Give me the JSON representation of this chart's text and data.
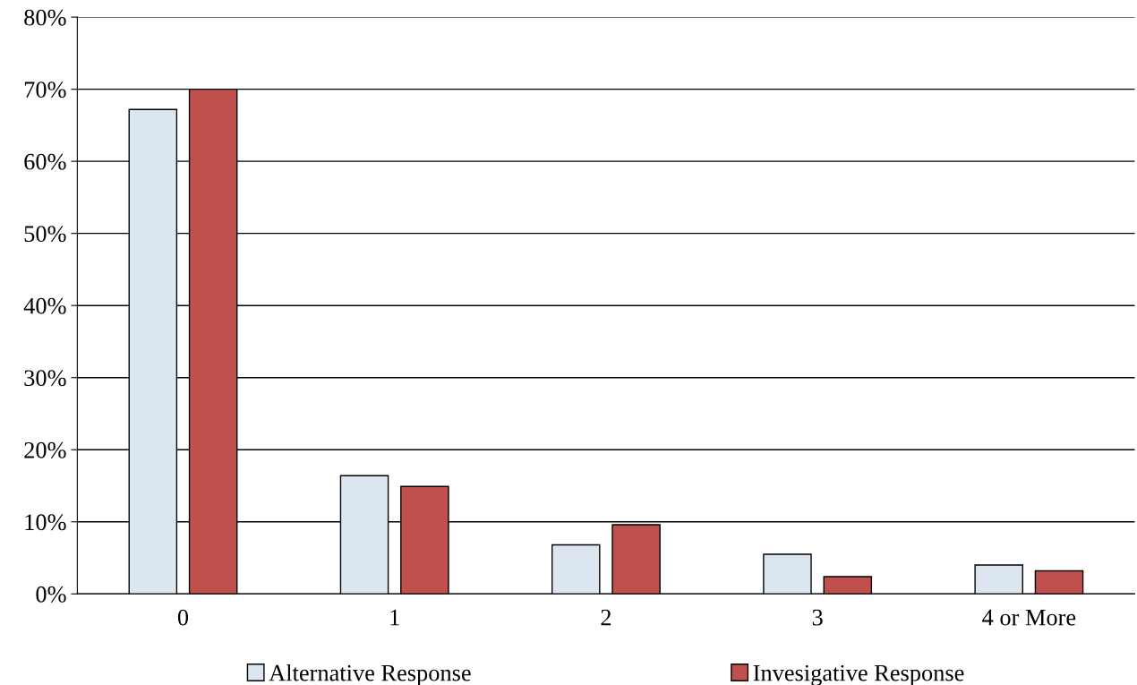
{
  "chart_data": {
    "type": "bar",
    "categories": [
      "0",
      "1",
      "2",
      "3",
      "4 or More"
    ],
    "series": [
      {
        "name": "Alternative Response",
        "color": "#dce6f1",
        "values": [
          67.2,
          16.4,
          6.8,
          5.5,
          4.0
        ]
      },
      {
        "name": "Invesigative Response",
        "color": "#c0504d",
        "values": [
          70.0,
          14.9,
          9.6,
          2.4,
          3.2
        ]
      }
    ],
    "ylim": [
      0,
      80
    ],
    "yticks": [
      {
        "value": 0,
        "label": "0%"
      },
      {
        "value": 10,
        "label": "10%"
      },
      {
        "value": 20,
        "label": "20%"
      },
      {
        "value": 30,
        "label": "30%"
      },
      {
        "value": 40,
        "label": "40%"
      },
      {
        "value": 50,
        "label": "50%"
      },
      {
        "value": 60,
        "label": "60%"
      },
      {
        "value": 70,
        "label": "70%"
      },
      {
        "value": 80,
        "label": "80%"
      }
    ],
    "grid": "y",
    "legend": "bottom"
  }
}
